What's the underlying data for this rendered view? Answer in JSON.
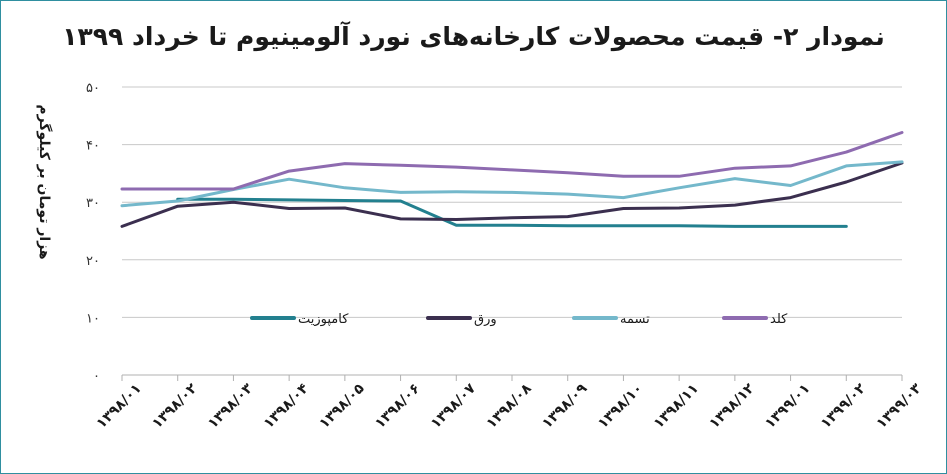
{
  "chart_data": {
    "type": "line",
    "title": "نمودار ۲- قیمت محصولات کارخانه‌های نورد آلومینیوم تا خرداد ۱۳۹۹",
    "xlabel": "",
    "ylabel": "هزار تومان بر کیلوگرم",
    "ylim": [
      0,
      50
    ],
    "y_ticks": [
      {
        "value": 0,
        "label": "۰"
      },
      {
        "value": 10,
        "label": "۱۰"
      },
      {
        "value": 20,
        "label": "۲۰"
      },
      {
        "value": 30,
        "label": "۳۰"
      },
      {
        "value": 40,
        "label": "۴۰"
      },
      {
        "value": 50,
        "label": "۵۰"
      }
    ],
    "grid": true,
    "legend_placement": "center",
    "categories": [
      "۱۳۹۸/۰۱",
      "۱۳۹۸/۰۲",
      "۱۳۹۸/۰۳",
      "۱۳۹۸/۰۴",
      "۱۳۹۸/۰۵",
      "۱۳۹۸/۰۶",
      "۱۳۹۸/۰۷",
      "۱۳۹۸/۰۸",
      "۱۳۹۸/۰۹",
      "۱۳۹۸/۱۰",
      "۱۳۹۸/۱۱",
      "۱۳۹۸/۱۲",
      "۱۳۹۹/۰۱",
      "۱۳۹۹/۰۲",
      "۱۳۹۹/۰۳"
    ],
    "series": [
      {
        "name": "کامپوزیت",
        "color": "#23808f",
        "values": [
          null,
          30.5,
          30.5,
          30.4,
          30.3,
          30.2,
          26.0,
          26.0,
          25.9,
          25.9,
          25.9,
          25.8,
          25.8,
          25.8,
          null
        ]
      },
      {
        "name": "ورق",
        "color": "#3b2f4f",
        "values": [
          25.8,
          29.3,
          30.0,
          28.9,
          29.0,
          27.1,
          27.0,
          27.3,
          27.5,
          28.9,
          29.0,
          29.5,
          30.8,
          33.5,
          36.8
        ]
      },
      {
        "name": "تسمه",
        "color": "#74b8cb",
        "values": [
          29.4,
          30.2,
          32.2,
          34.0,
          32.5,
          31.7,
          31.8,
          31.7,
          31.4,
          30.8,
          32.5,
          34.1,
          32.9,
          36.3,
          37.0
        ]
      },
      {
        "name": "کلد",
        "color": "#8e6bb0",
        "values": [
          32.3,
          32.3,
          32.3,
          35.4,
          36.7,
          36.4,
          36.1,
          35.6,
          35.1,
          34.5,
          34.5,
          35.9,
          36.3,
          38.7,
          42.1
        ]
      }
    ]
  }
}
